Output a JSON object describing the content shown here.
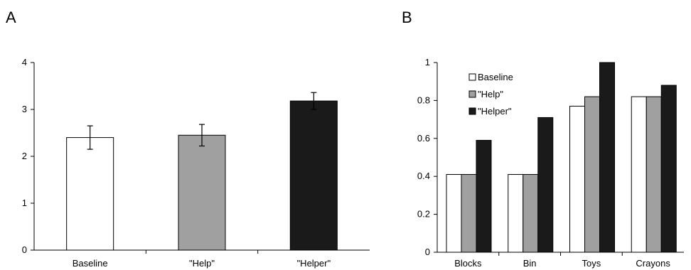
{
  "panels": {
    "a_label": "A",
    "b_label": "B"
  },
  "chart_data": [
    {
      "type": "bar",
      "title": "",
      "xlabel": "",
      "ylabel": "",
      "categories": [
        "Baseline",
        "\"Help\"",
        "\"Helper\""
      ],
      "values": [
        2.4,
        2.45,
        3.18
      ],
      "errors": [
        0.25,
        0.23,
        0.18
      ],
      "colors": [
        "#ffffff",
        "#a0a0a0",
        "#1a1a1a"
      ],
      "ylim": [
        0,
        4
      ],
      "yticks": [
        "0",
        "1",
        "2",
        "3",
        "4"
      ],
      "grid": false,
      "legend": false
    },
    {
      "type": "bar",
      "title": "",
      "xlabel": "",
      "ylabel": "",
      "categories": [
        "Blocks",
        "Bin",
        "Toys",
        "Crayons"
      ],
      "series": [
        {
          "name": "Baseline",
          "color": "#ffffff",
          "values": [
            0.41,
            0.41,
            0.77,
            0.82
          ]
        },
        {
          "name": "\"Help\"",
          "color": "#a0a0a0",
          "values": [
            0.41,
            0.41,
            0.82,
            0.82
          ]
        },
        {
          "name": "\"Helper\"",
          "color": "#1a1a1a",
          "values": [
            0.59,
            0.71,
            1.0,
            0.88
          ]
        }
      ],
      "ylim": [
        0,
        1
      ],
      "yticks": [
        "0",
        "0.2",
        "0.4",
        "0.6",
        "0.8",
        "1"
      ],
      "grid": false,
      "legend": "top-left"
    }
  ]
}
